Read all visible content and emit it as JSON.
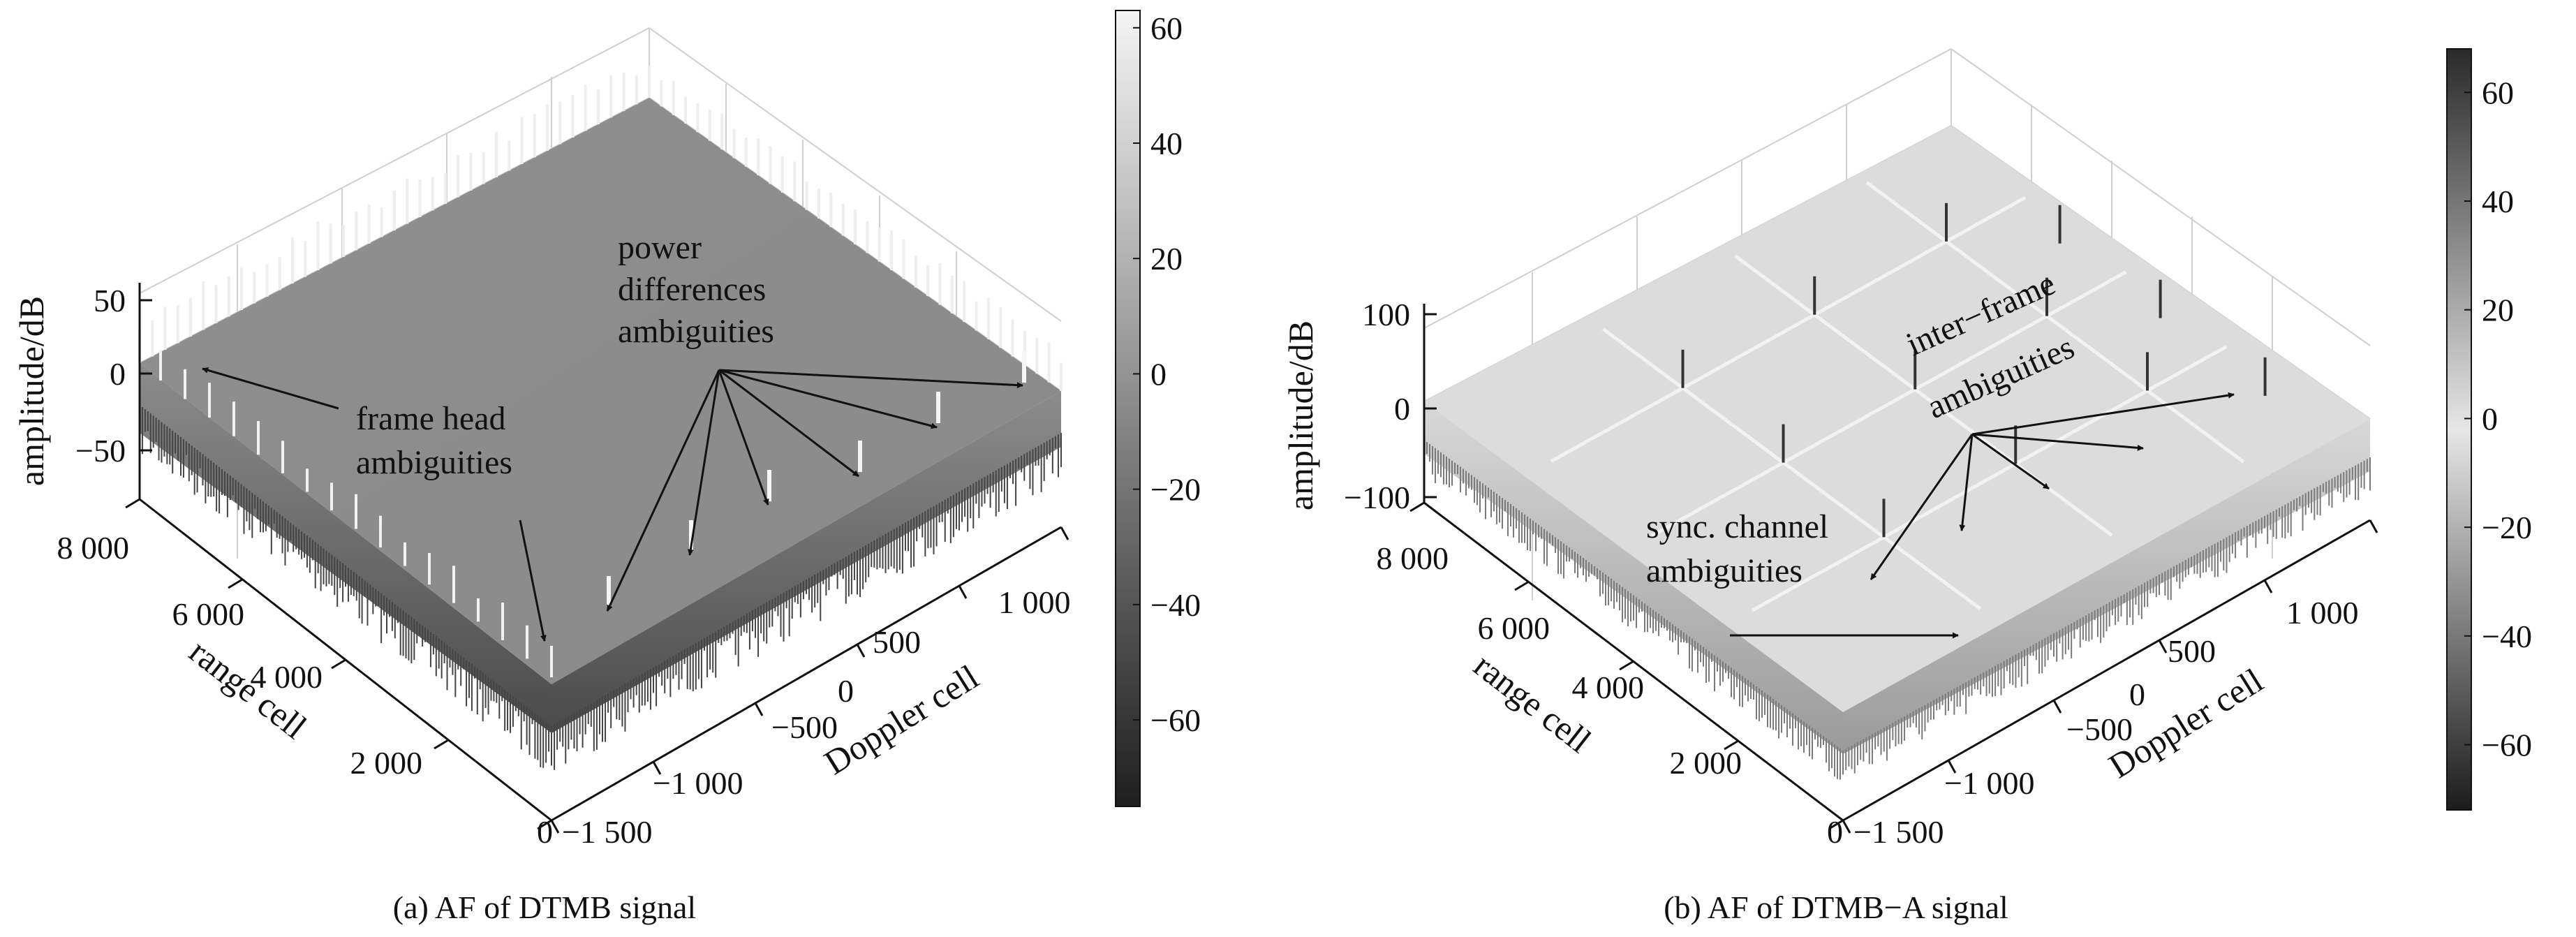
{
  "chart_data": [
    {
      "type": "surface",
      "caption": "(a)  AF of DTMB signal",
      "zlabel": "amplitude/dB",
      "xlabel": "Doppler cell",
      "ylabel": "range cell",
      "z_ticks": [
        "50",
        "0",
        "−50"
      ],
      "x_ticks": [
        "−1 500",
        "−1 000",
        "−500",
        "0",
        "500",
        "1 000"
      ],
      "y_ticks": [
        "0",
        "2 000",
        "4 000",
        "6 000",
        "8 000"
      ],
      "colorbar": {
        "ticks": [
          "60",
          "40",
          "20",
          "0",
          "−20",
          "−40",
          "−60"
        ],
        "range": [
          -75,
          63
        ],
        "from": "#f4f4f4",
        "to": "#1e1e1e"
      },
      "annotations": [
        {
          "lines": [
            "frame head",
            "ambiguities"
          ]
        },
        {
          "lines": [
            "power",
            "differences",
            "ambiguities"
          ]
        }
      ]
    },
    {
      "type": "surface",
      "caption": "(b) AF of DTMB−A signal",
      "zlabel": "amplitude/dB",
      "xlabel": "Doppler cell",
      "ylabel": "range cell",
      "z_ticks": [
        "100",
        "0",
        "−100"
      ],
      "x_ticks": [
        "−1 500",
        "−1 000",
        "−500",
        "0",
        "500",
        "1 000"
      ],
      "y_ticks": [
        "0",
        "2 000",
        "4 000",
        "6 000",
        "8 000"
      ],
      "colorbar": {
        "ticks": [
          "60",
          "40",
          "20",
          "0",
          "−20",
          "−40",
          "−60"
        ],
        "range": [
          -72,
          68
        ],
        "from": "#2a2a2a",
        "to": "#f2f2f2"
      },
      "annotations": [
        {
          "lines": [
            "inter−frame",
            "ambiguities"
          ]
        },
        {
          "lines": [
            "sync. channel",
            "ambiguities"
          ]
        }
      ]
    }
  ]
}
